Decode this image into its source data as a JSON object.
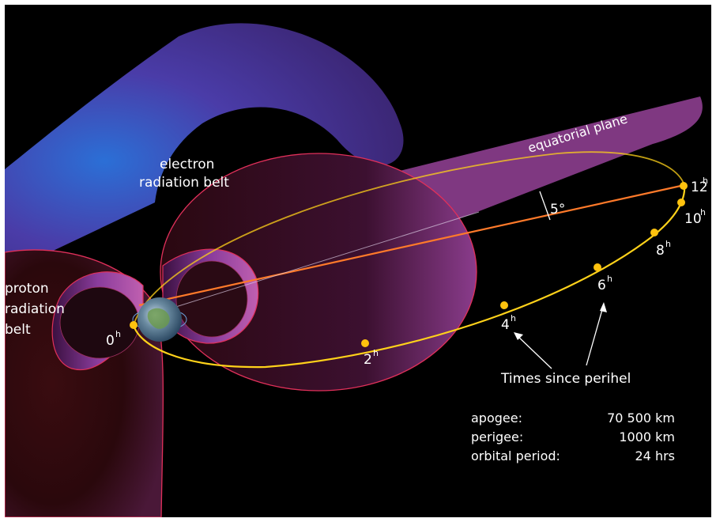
{
  "labels": {
    "electron_belt": [
      "electron",
      "radiation belt"
    ],
    "proton_belt": [
      "proton",
      "radiation",
      "belt"
    ],
    "equatorial_plane": "equatorial plane",
    "inclination": "5°",
    "times_caption": "Times since perihel"
  },
  "time_markers": [
    {
      "num": "0",
      "sup": "h"
    },
    {
      "num": "2",
      "sup": "h"
    },
    {
      "num": "4",
      "sup": "h"
    },
    {
      "num": "6",
      "sup": "h"
    },
    {
      "num": "8",
      "sup": "h"
    },
    {
      "num": "10",
      "sup": "h"
    },
    {
      "num": "12",
      "sup": "h"
    }
  ],
  "orbit_stats": [
    {
      "label": "apogee:",
      "value": "70 500 km"
    },
    {
      "label": "perigee:",
      "value": "1000 km"
    },
    {
      "label": "orbital period:",
      "value": "24 hrs"
    }
  ],
  "colors": {
    "background": "#000000",
    "orbit": "#ffd21a",
    "marker": "#ffc20e",
    "apsis_line": "#ff7a2a",
    "equatorial_plane": "#8a3d8c",
    "belt_edge": "#e0305a",
    "electron_belt": "#5a3aa0",
    "proton_belt": "#7a3c9e"
  }
}
